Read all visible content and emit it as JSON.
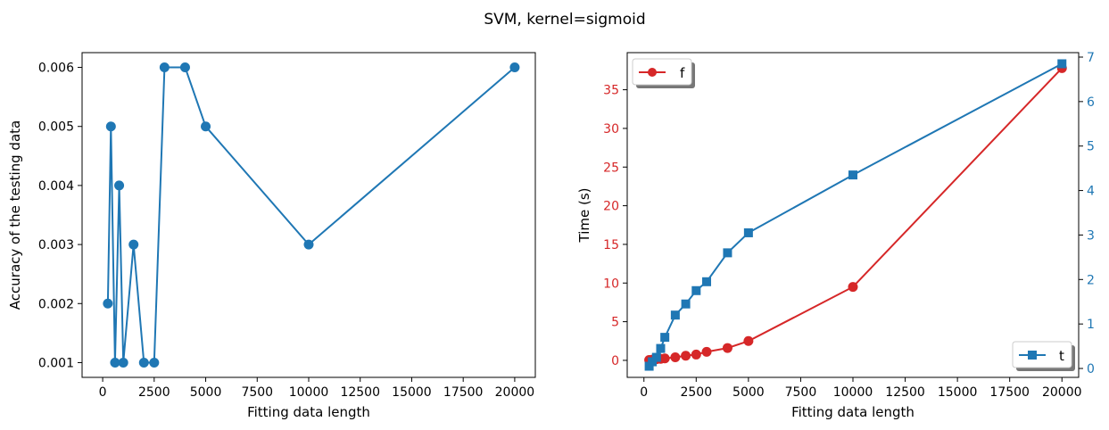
{
  "title": "SVM, kernel=sigmoid",
  "colors": {
    "blue": "#1f77b4",
    "red": "#d62728"
  },
  "chart_data": [
    {
      "type": "line",
      "xlabel": "Fitting data length",
      "ylabel": "Accuracy of the testing data",
      "xlim": [
        -1000,
        21000
      ],
      "ylim": [
        0.00075,
        0.00625
      ],
      "xticks": [
        0,
        2500,
        5000,
        7500,
        10000,
        12500,
        15000,
        17500,
        20000
      ],
      "yticks": [
        0.001,
        0.002,
        0.003,
        0.004,
        0.005,
        0.006
      ],
      "xtick_labels": [
        "0",
        "2500",
        "5000",
        "7500",
        "10000",
        "12500",
        "15000",
        "17500",
        "20000"
      ],
      "ytick_labels": [
        "0.001",
        "0.002",
        "0.003",
        "0.004",
        "0.005",
        "0.006"
      ],
      "grid": false,
      "series": [
        {
          "color": "#1f77b4",
          "marker": "circle",
          "x": [
            250,
            400,
            600,
            800,
            1000,
            1500,
            2000,
            2500,
            3000,
            4000,
            5000,
            10000,
            20000
          ],
          "y": [
            0.002,
            0.005,
            0.001,
            0.004,
            0.001,
            0.003,
            0.001,
            0.001,
            0.006,
            0.006,
            0.005,
            0.003,
            0.006
          ]
        }
      ]
    },
    {
      "type": "line",
      "xlabel": "Fitting data length",
      "ylabel": "Time (s)",
      "xlim": [
        -800,
        20800
      ],
      "ylim": [
        -2.2,
        39.8
      ],
      "y2lim": [
        -0.2,
        7.1
      ],
      "xticks": [
        0,
        2500,
        5000,
        7500,
        10000,
        12500,
        15000,
        17500,
        20000
      ],
      "yticks": [
        0,
        5,
        10,
        15,
        20,
        25,
        30,
        35
      ],
      "y2ticks": [
        0,
        1,
        2,
        3,
        4,
        5,
        6,
        7
      ],
      "xtick_labels": [
        "0",
        "2500",
        "5000",
        "7500",
        "10000",
        "12500",
        "15000",
        "17500",
        "20000"
      ],
      "ytick_labels": [
        "0",
        "5",
        "10",
        "15",
        "20",
        "25",
        "30",
        "35"
      ],
      "y2tick_labels": [
        "0",
        "1",
        "2",
        "3",
        "4",
        "5",
        "6",
        "7"
      ],
      "grid": false,
      "series": [
        {
          "name": "f",
          "axis": "left",
          "color": "#d62728",
          "marker": "circle",
          "legend_position": "top-left",
          "x": [
            250,
            400,
            600,
            800,
            1000,
            1500,
            2000,
            2500,
            3000,
            4000,
            5000,
            10000,
            20000
          ],
          "y": [
            0.05,
            0.1,
            0.15,
            0.2,
            0.25,
            0.4,
            0.6,
            0.75,
            1.1,
            1.6,
            2.5,
            9.5,
            37.8
          ]
        },
        {
          "name": "t",
          "axis": "right",
          "color": "#1f77b4",
          "marker": "square",
          "legend_position": "bottom-right",
          "x": [
            250,
            400,
            600,
            800,
            1000,
            1500,
            2000,
            2500,
            3000,
            4000,
            5000,
            10000,
            20000
          ],
          "y": [
            0.05,
            0.15,
            0.25,
            0.45,
            0.7,
            1.2,
            1.45,
            1.75,
            1.95,
            2.6,
            3.05,
            4.35,
            6.85
          ]
        }
      ]
    }
  ]
}
